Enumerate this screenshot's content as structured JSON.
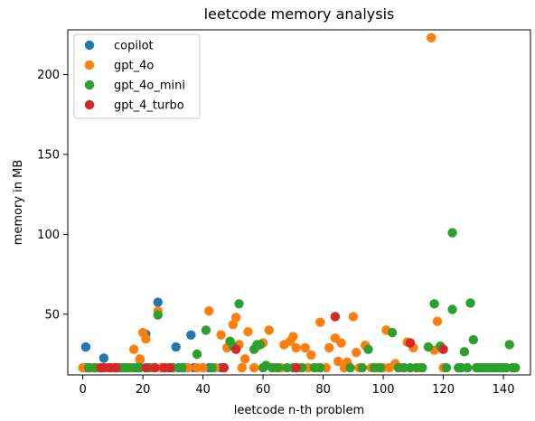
{
  "chart_data": {
    "type": "scatter",
    "title": "leetcode memory analysis",
    "xlabel": "leetcode n-th problem",
    "ylabel": "memory in MB",
    "xlim": [
      -5,
      149
    ],
    "ylim": [
      12,
      228
    ],
    "xticks": [
      0,
      20,
      40,
      60,
      80,
      100,
      120,
      140
    ],
    "yticks": [
      50,
      100,
      150,
      200
    ],
    "grid": false,
    "legend_position": "top-left",
    "series": [
      {
        "name": "copilot",
        "color": "#1f77b4",
        "points": [
          [
            1,
            29.5
          ],
          [
            1,
            16.5
          ],
          [
            2,
            16.5
          ],
          [
            3,
            16.5
          ],
          [
            4,
            16.5
          ],
          [
            5,
            16.5
          ],
          [
            6,
            16.5
          ],
          [
            7,
            22.5
          ],
          [
            8,
            16.5
          ],
          [
            10,
            16.5
          ],
          [
            12,
            16.5
          ],
          [
            14,
            16.5
          ],
          [
            16,
            16.5
          ],
          [
            18,
            16.5
          ],
          [
            19,
            21.5
          ],
          [
            21,
            37.5
          ],
          [
            22,
            16.5
          ],
          [
            24,
            16.5
          ],
          [
            25,
            57.5
          ],
          [
            26,
            16.5
          ],
          [
            28,
            16.5
          ],
          [
            30,
            16.5
          ],
          [
            31,
            29.5
          ],
          [
            32,
            16.5
          ],
          [
            34,
            16.5
          ],
          [
            36,
            37
          ],
          [
            37,
            16.5
          ],
          [
            40,
            16.5
          ],
          [
            42,
            16.5
          ],
          [
            44,
            16.5
          ],
          [
            46,
            16.5
          ]
        ]
      },
      {
        "name": "gpt_4o",
        "color": "#ff7f0e",
        "points": [
          [
            0,
            16.5
          ],
          [
            3,
            16.5
          ],
          [
            5,
            16.5
          ],
          [
            8,
            16.5
          ],
          [
            10,
            16.5
          ],
          [
            13,
            16.5
          ],
          [
            16,
            16.5
          ],
          [
            17,
            28
          ],
          [
            19,
            22
          ],
          [
            20,
            38.5
          ],
          [
            21,
            34.5
          ],
          [
            23,
            16.5
          ],
          [
            25,
            52
          ],
          [
            26,
            16.5
          ],
          [
            28,
            16.5
          ],
          [
            30,
            16.5
          ],
          [
            33,
            16.5
          ],
          [
            35,
            16.5
          ],
          [
            38,
            16.5
          ],
          [
            40,
            16.5
          ],
          [
            42,
            52
          ],
          [
            44,
            16.5
          ],
          [
            46,
            37
          ],
          [
            48,
            29
          ],
          [
            50,
            43.5
          ],
          [
            51,
            48
          ],
          [
            52,
            31
          ],
          [
            53,
            16.5
          ],
          [
            54,
            22
          ],
          [
            55,
            39
          ],
          [
            57,
            16.5
          ],
          [
            58,
            30
          ],
          [
            60,
            32
          ],
          [
            62,
            40
          ],
          [
            64,
            16.5
          ],
          [
            66,
            16.5
          ],
          [
            67,
            31
          ],
          [
            69,
            33
          ],
          [
            70,
            36
          ],
          [
            71,
            29
          ],
          [
            72,
            16.5
          ],
          [
            74,
            29
          ],
          [
            75,
            16.5
          ],
          [
            76,
            24.5
          ],
          [
            78,
            16.5
          ],
          [
            79,
            45
          ],
          [
            81,
            16.5
          ],
          [
            82,
            29
          ],
          [
            84,
            35
          ],
          [
            85,
            20.5
          ],
          [
            86,
            32
          ],
          [
            87,
            16.5
          ],
          [
            88,
            20
          ],
          [
            90,
            48.5
          ],
          [
            91,
            26
          ],
          [
            92,
            16.5
          ],
          [
            94,
            30.5
          ],
          [
            96,
            16.5
          ],
          [
            98,
            16.5
          ],
          [
            100,
            16.5
          ],
          [
            101,
            40
          ],
          [
            102,
            16.5
          ],
          [
            104,
            19
          ],
          [
            106,
            16.5
          ],
          [
            108,
            32.5
          ],
          [
            110,
            29
          ],
          [
            111,
            16.5
          ],
          [
            112,
            16.5
          ],
          [
            116,
            223
          ],
          [
            117,
            27.5
          ],
          [
            118,
            45.5
          ],
          [
            119,
            29
          ],
          [
            120,
            16.5
          ]
        ]
      },
      {
        "name": "gpt_4o_mini",
        "color": "#2ca02c",
        "points": [
          [
            2,
            16.5
          ],
          [
            4,
            16.5
          ],
          [
            11,
            16.5
          ],
          [
            13,
            16.5
          ],
          [
            15,
            16.5
          ],
          [
            17,
            16.5
          ],
          [
            19,
            16.5
          ],
          [
            22,
            16.5
          ],
          [
            25,
            49.5
          ],
          [
            27,
            16.5
          ],
          [
            30,
            16.5
          ],
          [
            33,
            16.5
          ],
          [
            38,
            25
          ],
          [
            41,
            40
          ],
          [
            43,
            16.5
          ],
          [
            47,
            16.5
          ],
          [
            49,
            33
          ],
          [
            50,
            30
          ],
          [
            52,
            56.5
          ],
          [
            57,
            28
          ],
          [
            58,
            31
          ],
          [
            59,
            31
          ],
          [
            60,
            16.5
          ],
          [
            61,
            18
          ],
          [
            63,
            16.5
          ],
          [
            65,
            16.5
          ],
          [
            68,
            16.5
          ],
          [
            70,
            16.5
          ],
          [
            73,
            16.5
          ],
          [
            77,
            16.5
          ],
          [
            79,
            16.5
          ],
          [
            89,
            16.5
          ],
          [
            93,
            16.5
          ],
          [
            95,
            28
          ],
          [
            97,
            16.5
          ],
          [
            99,
            16.5
          ],
          [
            103,
            38.5
          ],
          [
            105,
            16.5
          ],
          [
            107,
            16.5
          ],
          [
            109,
            16.5
          ],
          [
            111,
            16.5
          ],
          [
            113,
            16.5
          ],
          [
            115,
            29.5
          ],
          [
            117,
            56.5
          ],
          [
            119,
            30
          ],
          [
            121,
            16.5
          ],
          [
            123,
            53
          ],
          [
            123,
            101
          ],
          [
            125,
            16.5
          ],
          [
            126,
            16.5
          ],
          [
            127,
            26.5
          ],
          [
            128,
            16.5
          ],
          [
            129,
            57
          ],
          [
            130,
            34
          ],
          [
            131,
            16.5
          ],
          [
            132,
            16.5
          ],
          [
            133,
            16.5
          ],
          [
            134,
            16.5
          ],
          [
            135,
            16.5
          ],
          [
            136,
            16.5
          ],
          [
            137,
            16.5
          ],
          [
            138,
            16.5
          ],
          [
            139,
            16.5
          ],
          [
            140,
            16.5
          ],
          [
            141,
            16.5
          ],
          [
            142,
            31
          ],
          [
            143,
            16.5
          ],
          [
            144,
            16.5
          ]
        ]
      },
      {
        "name": "gpt_4_turbo",
        "color": "#d62728",
        "points": [
          [
            6,
            16.5
          ],
          [
            7,
            16.5
          ],
          [
            9,
            16.5
          ],
          [
            11,
            16.5
          ],
          [
            21,
            16.5
          ],
          [
            24,
            16.5
          ],
          [
            27,
            16.5
          ],
          [
            29,
            16.5
          ],
          [
            47,
            16.5
          ],
          [
            51,
            28
          ],
          [
            71,
            16.5
          ],
          [
            84,
            48.5
          ],
          [
            109,
            32
          ],
          [
            120,
            28
          ]
        ]
      }
    ]
  }
}
